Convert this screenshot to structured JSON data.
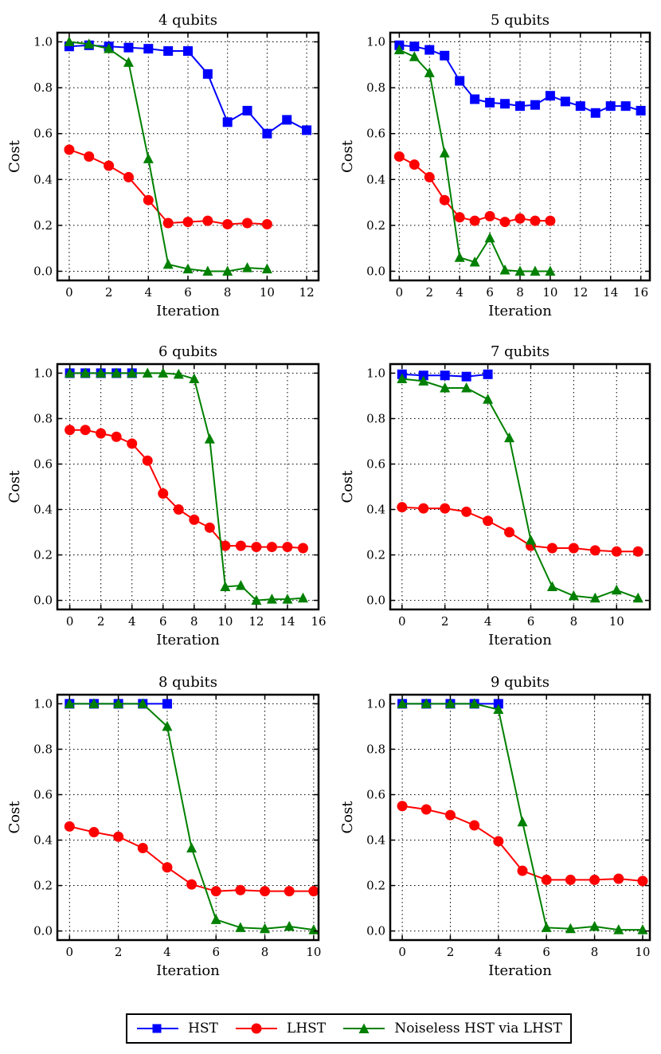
{
  "figure": {
    "background": "#ffffff"
  },
  "legend": {
    "entries": [
      {
        "label": "HST",
        "color": "#0000ff",
        "marker": "square"
      },
      {
        "label": "LHST",
        "color": "#ff0000",
        "marker": "circle"
      },
      {
        "label": "Noiseless HST via LHST",
        "color": "#008000",
        "marker": "triangle"
      }
    ]
  },
  "chart_data": [
    {
      "type": "line",
      "title": "4 qubits",
      "xlabel": "Iteration",
      "ylabel": "Cost",
      "xlim": [
        -0.6,
        12.6
      ],
      "ylim": [
        -0.04,
        1.04
      ],
      "xticks": [
        0,
        2,
        4,
        6,
        8,
        10,
        12
      ],
      "yticks": [
        0.0,
        0.2,
        0.4,
        0.6,
        0.8,
        1.0
      ],
      "grid": true,
      "series": [
        {
          "name": "HST",
          "marker": "square",
          "color": "#0000ff",
          "x": [
            0,
            1,
            2,
            3,
            4,
            5,
            6,
            7,
            8,
            9,
            10,
            11,
            12
          ],
          "y": [
            0.98,
            0.985,
            0.98,
            0.975,
            0.97,
            0.96,
            0.96,
            0.86,
            0.65,
            0.7,
            0.6,
            0.66,
            0.615
          ]
        },
        {
          "name": "LHST",
          "marker": "circle",
          "color": "#ff0000",
          "x": [
            0,
            1,
            2,
            3,
            4,
            5,
            6,
            7,
            8,
            9,
            10
          ],
          "y": [
            0.53,
            0.5,
            0.46,
            0.41,
            0.31,
            0.21,
            0.215,
            0.22,
            0.205,
            0.21,
            0.205
          ]
        },
        {
          "name": "Noiseless HST via LHST",
          "marker": "triangle",
          "color": "#008000",
          "x": [
            0,
            1,
            2,
            3,
            4,
            5,
            6,
            7,
            8,
            9,
            10
          ],
          "y": [
            1.0,
            0.99,
            0.97,
            0.91,
            0.49,
            0.03,
            0.01,
            0.0,
            0.0,
            0.015,
            0.01
          ]
        }
      ]
    },
    {
      "type": "line",
      "title": "5 qubits",
      "xlabel": "Iteration",
      "ylabel": "Cost",
      "xlim": [
        -0.6,
        16.6
      ],
      "ylim": [
        -0.04,
        1.04
      ],
      "xticks": [
        0,
        2,
        4,
        6,
        8,
        10,
        12,
        14,
        16
      ],
      "yticks": [
        0.0,
        0.2,
        0.4,
        0.6,
        0.8,
        1.0
      ],
      "grid": true,
      "series": [
        {
          "name": "HST",
          "marker": "square",
          "color": "#0000ff",
          "x": [
            0,
            1,
            2,
            3,
            4,
            5,
            6,
            7,
            8,
            9,
            10,
            11,
            12,
            13,
            14,
            15,
            16
          ],
          "y": [
            0.985,
            0.98,
            0.965,
            0.94,
            0.83,
            0.75,
            0.735,
            0.73,
            0.72,
            0.725,
            0.765,
            0.74,
            0.72,
            0.69,
            0.72,
            0.72,
            0.7
          ]
        },
        {
          "name": "LHST",
          "marker": "circle",
          "color": "#ff0000",
          "x": [
            0,
            1,
            2,
            3,
            4,
            5,
            6,
            7,
            8,
            9,
            10
          ],
          "y": [
            0.5,
            0.465,
            0.41,
            0.31,
            0.235,
            0.22,
            0.24,
            0.215,
            0.23,
            0.22,
            0.22
          ]
        },
        {
          "name": "Noiseless HST via LHST",
          "marker": "triangle",
          "color": "#008000",
          "x": [
            0,
            1,
            2,
            3,
            4,
            5,
            6,
            7,
            8,
            9,
            10
          ],
          "y": [
            0.965,
            0.935,
            0.865,
            0.515,
            0.06,
            0.04,
            0.145,
            0.005,
            0.0,
            0.0,
            0.0
          ]
        }
      ]
    },
    {
      "type": "line",
      "title": "6 qubits",
      "xlabel": "Iteration",
      "ylabel": "Cost",
      "xlim": [
        -0.8,
        16.0
      ],
      "ylim": [
        -0.04,
        1.04
      ],
      "xticks": [
        0,
        2,
        4,
        6,
        8,
        10,
        12,
        14,
        16
      ],
      "yticks": [
        0.0,
        0.2,
        0.4,
        0.6,
        0.8,
        1.0
      ],
      "grid": true,
      "series": [
        {
          "name": "HST",
          "marker": "square",
          "color": "#0000ff",
          "x": [
            0,
            1,
            2,
            3,
            4
          ],
          "y": [
            1.0,
            1.0,
            1.0,
            1.0,
            1.0
          ]
        },
        {
          "name": "LHST",
          "marker": "circle",
          "color": "#ff0000",
          "x": [
            0,
            1,
            2,
            3,
            4,
            5,
            6,
            7,
            8,
            9,
            10,
            11,
            12,
            13,
            14,
            15
          ],
          "y": [
            0.75,
            0.75,
            0.735,
            0.72,
            0.69,
            0.615,
            0.47,
            0.4,
            0.355,
            0.32,
            0.24,
            0.24,
            0.235,
            0.235,
            0.235,
            0.23
          ]
        },
        {
          "name": "Noiseless HST via LHST",
          "marker": "triangle",
          "color": "#008000",
          "x": [
            0,
            1,
            2,
            3,
            4,
            5,
            6,
            7,
            8,
            9,
            10,
            11,
            12,
            13,
            14,
            15
          ],
          "y": [
            1.0,
            1.0,
            1.0,
            1.0,
            1.0,
            1.0,
            1.0,
            0.995,
            0.975,
            0.71,
            0.06,
            0.065,
            0.0,
            0.005,
            0.005,
            0.01
          ]
        }
      ]
    },
    {
      "type": "line",
      "title": "7 qubits",
      "xlabel": "Iteration",
      "ylabel": "Cost",
      "xlim": [
        -0.55,
        11.55
      ],
      "ylim": [
        -0.04,
        1.04
      ],
      "xticks": [
        0,
        2,
        4,
        6,
        8,
        10
      ],
      "yticks": [
        0.0,
        0.2,
        0.4,
        0.6,
        0.8,
        1.0
      ],
      "grid": true,
      "series": [
        {
          "name": "HST",
          "marker": "square",
          "color": "#0000ff",
          "x": [
            0,
            1,
            2,
            3,
            4
          ],
          "y": [
            0.995,
            0.99,
            0.99,
            0.985,
            0.995
          ]
        },
        {
          "name": "LHST",
          "marker": "circle",
          "color": "#ff0000",
          "x": [
            0,
            1,
            2,
            3,
            4,
            5,
            6,
            7,
            8,
            9,
            10,
            11
          ],
          "y": [
            0.41,
            0.405,
            0.405,
            0.39,
            0.35,
            0.3,
            0.24,
            0.23,
            0.23,
            0.22,
            0.215,
            0.215
          ]
        },
        {
          "name": "Noiseless HST via LHST",
          "marker": "triangle",
          "color": "#008000",
          "x": [
            0,
            1,
            2,
            3,
            4,
            5,
            6,
            7,
            8,
            9,
            10,
            11
          ],
          "y": [
            0.975,
            0.965,
            0.935,
            0.935,
            0.885,
            0.715,
            0.265,
            0.06,
            0.02,
            0.01,
            0.045,
            0.01
          ]
        }
      ]
    },
    {
      "type": "line",
      "title": "8 qubits",
      "xlabel": "Iteration",
      "ylabel": "Cost",
      "xlim": [
        -0.5,
        10.2
      ],
      "ylim": [
        -0.04,
        1.04
      ],
      "xticks": [
        0,
        2,
        4,
        6,
        8,
        10
      ],
      "yticks": [
        0.0,
        0.2,
        0.4,
        0.6,
        0.8,
        1.0
      ],
      "grid": true,
      "series": [
        {
          "name": "HST",
          "marker": "square",
          "color": "#0000ff",
          "x": [
            0,
            1,
            2,
            3,
            4
          ],
          "y": [
            1.0,
            1.0,
            1.0,
            1.0,
            1.0
          ]
        },
        {
          "name": "LHST",
          "marker": "circle",
          "color": "#ff0000",
          "x": [
            0,
            1,
            2,
            3,
            4,
            5,
            6,
            7,
            8,
            9,
            10
          ],
          "y": [
            0.46,
            0.435,
            0.415,
            0.365,
            0.28,
            0.205,
            0.175,
            0.18,
            0.175,
            0.175,
            0.175
          ]
        },
        {
          "name": "Noiseless HST via LHST",
          "marker": "triangle",
          "color": "#008000",
          "x": [
            0,
            1,
            2,
            3,
            4,
            5,
            6,
            7,
            8,
            9,
            10
          ],
          "y": [
            1.0,
            1.0,
            1.0,
            1.0,
            0.9,
            0.365,
            0.05,
            0.015,
            0.01,
            0.02,
            0.005
          ]
        }
      ]
    },
    {
      "type": "line",
      "title": "9 qubits",
      "xlabel": "Iteration",
      "ylabel": "Cost",
      "xlim": [
        -0.5,
        10.3
      ],
      "ylim": [
        -0.04,
        1.04
      ],
      "xticks": [
        0,
        2,
        4,
        6,
        8,
        10
      ],
      "yticks": [
        0.0,
        0.2,
        0.4,
        0.6,
        0.8,
        1.0
      ],
      "grid": true,
      "series": [
        {
          "name": "HST",
          "marker": "square",
          "color": "#0000ff",
          "x": [
            0,
            1,
            2,
            3,
            4
          ],
          "y": [
            1.0,
            1.0,
            1.0,
            1.0,
            1.0
          ]
        },
        {
          "name": "LHST",
          "marker": "circle",
          "color": "#ff0000",
          "x": [
            0,
            1,
            2,
            3,
            4,
            5,
            6,
            7,
            8,
            9,
            10
          ],
          "y": [
            0.55,
            0.535,
            0.51,
            0.465,
            0.395,
            0.265,
            0.225,
            0.225,
            0.225,
            0.23,
            0.22
          ]
        },
        {
          "name": "Noiseless HST via LHST",
          "marker": "triangle",
          "color": "#008000",
          "x": [
            0,
            1,
            2,
            3,
            4,
            5,
            6,
            7,
            8,
            9,
            10
          ],
          "y": [
            1.0,
            1.0,
            1.0,
            1.0,
            0.975,
            0.48,
            0.015,
            0.01,
            0.02,
            0.005,
            0.005
          ]
        }
      ]
    }
  ]
}
